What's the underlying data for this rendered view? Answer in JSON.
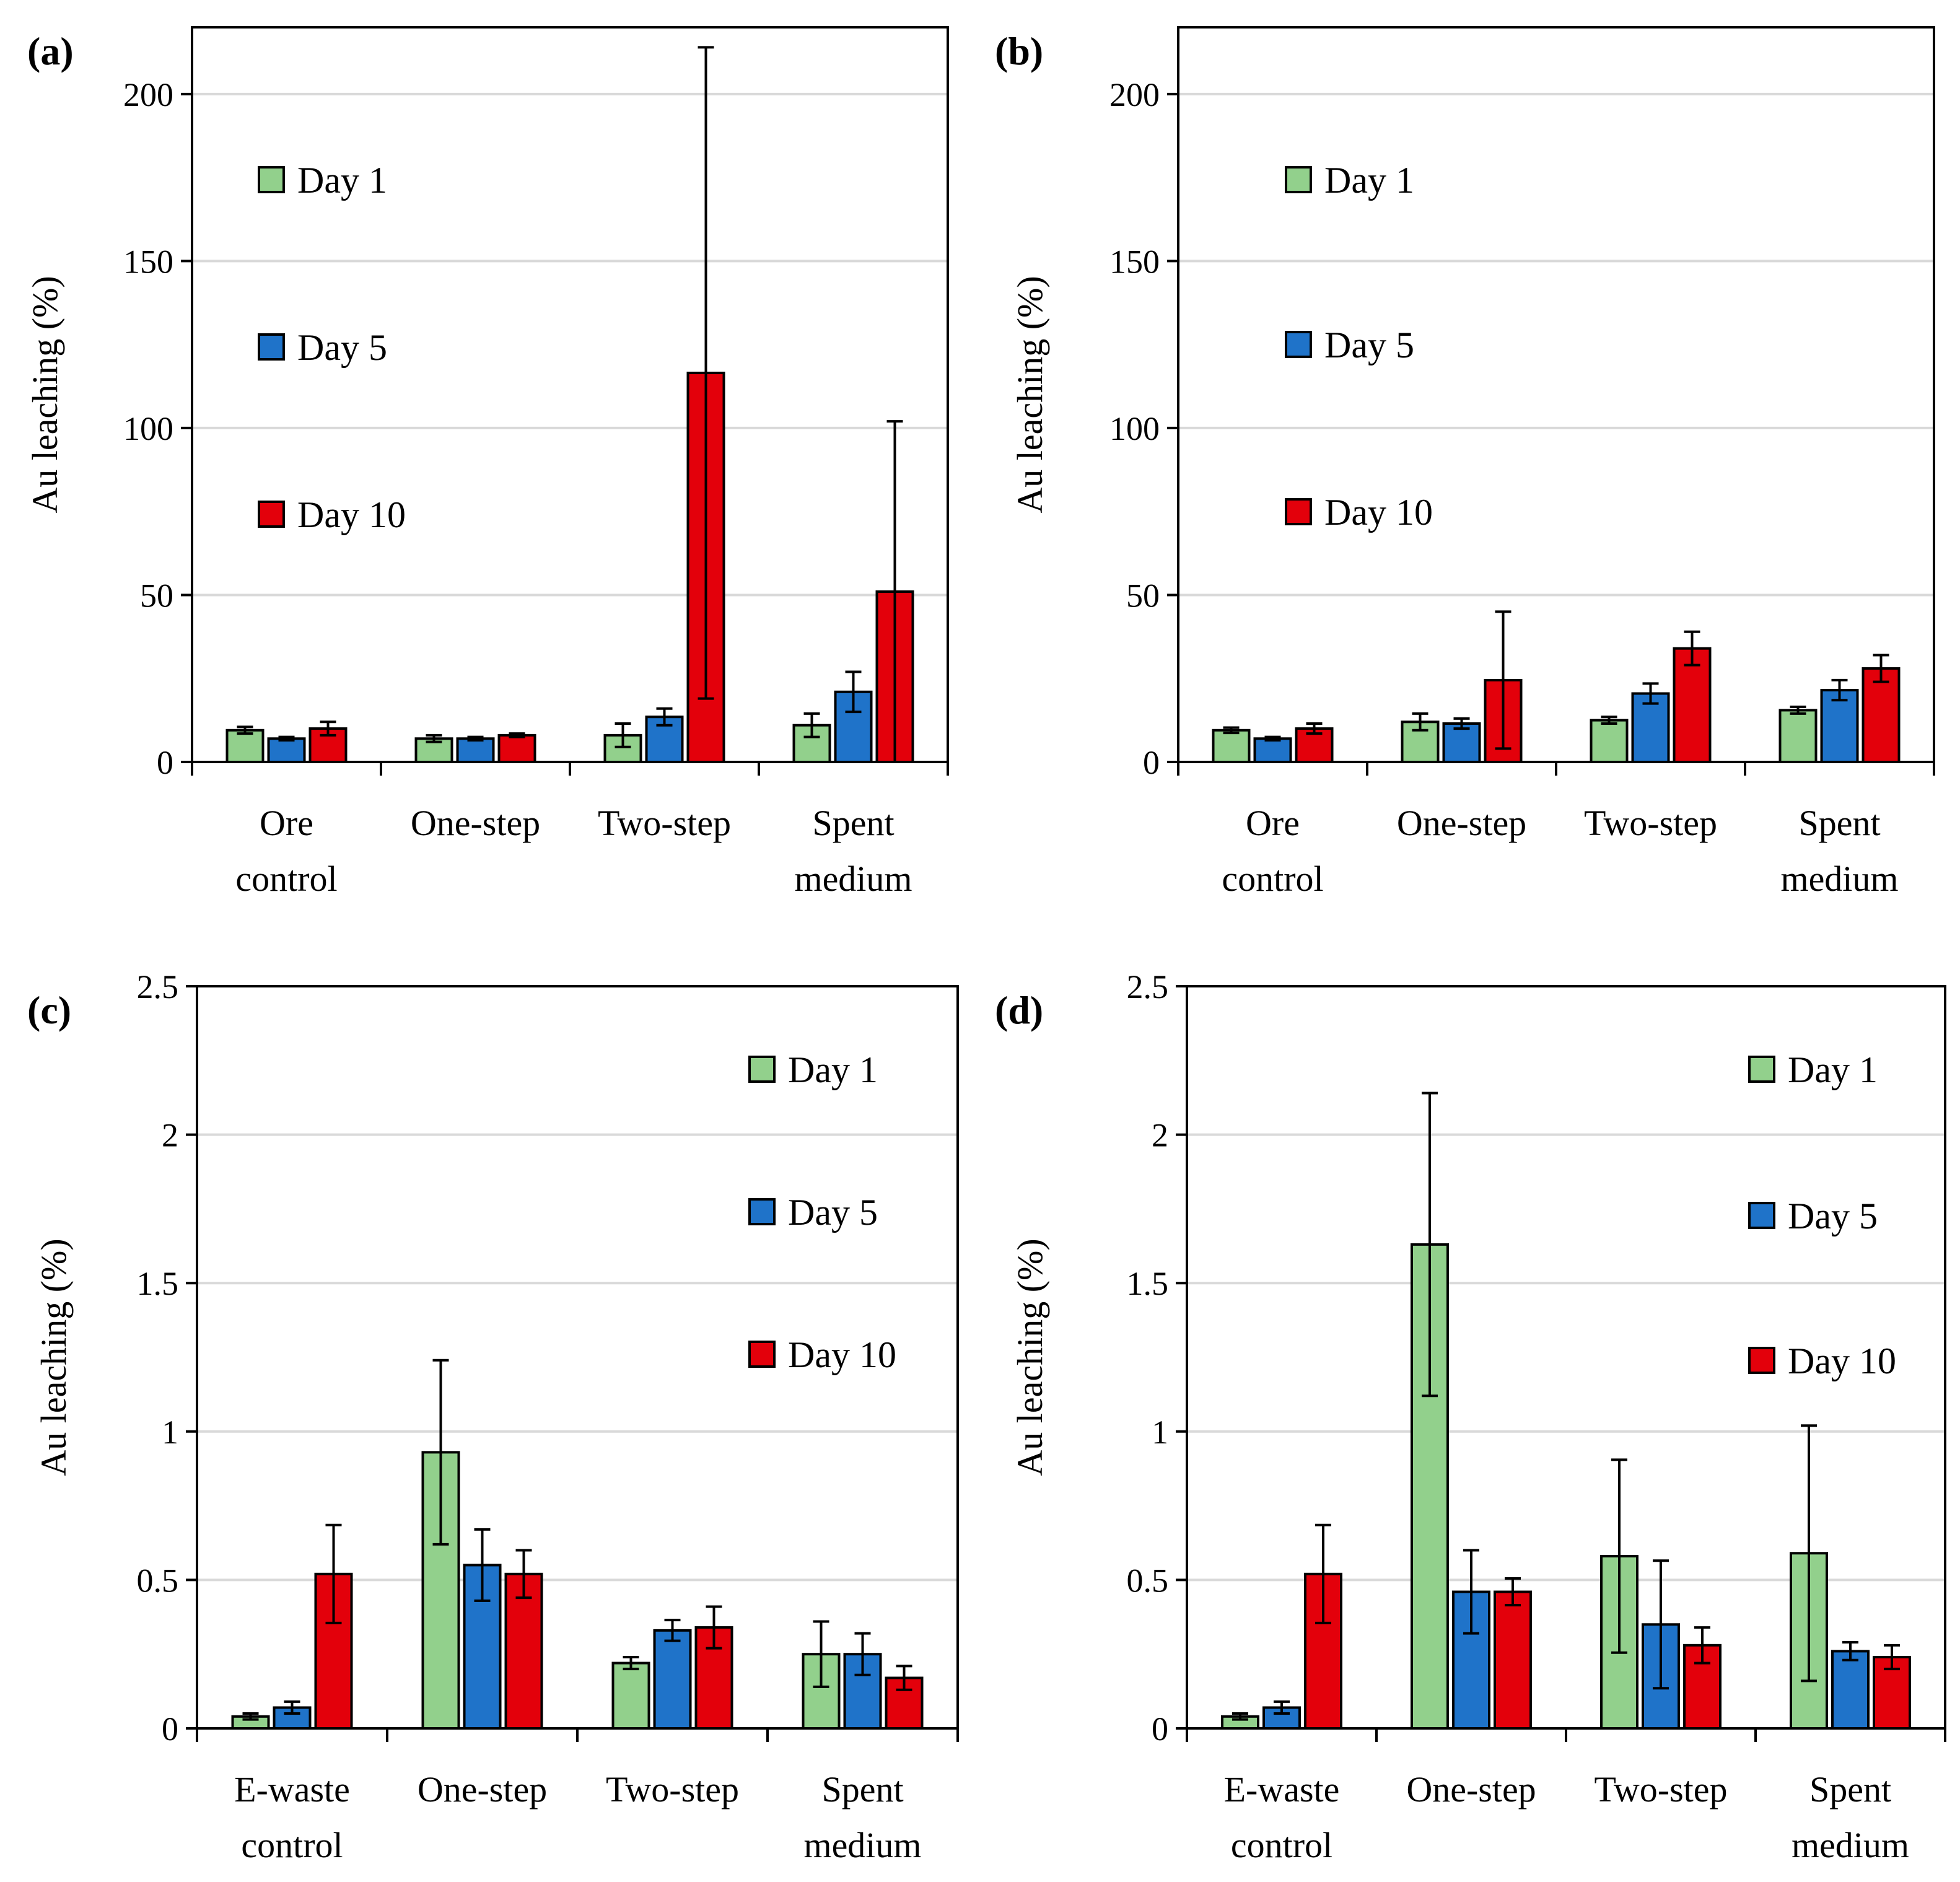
{
  "colors": {
    "day1": "#92d08c",
    "day5": "#1f73c9",
    "day10": "#e3000b",
    "gridline": "#d9d9d9",
    "axis": "#000000"
  },
  "chart_data": [
    {
      "type": "bar",
      "panel_label": "(a)",
      "ylabel": "Au leaching (%)",
      "ylim": [
        0,
        220
      ],
      "yticks": [
        0,
        50,
        100,
        150,
        200
      ],
      "ytick_labels": [
        "0",
        "50",
        "100",
        "150",
        "200"
      ],
      "grid": true,
      "legend_position": "upper-left",
      "categories": [
        [
          "Ore",
          "control"
        ],
        [
          "One-step"
        ],
        [
          "Two-step"
        ],
        [
          "Spent",
          "medium"
        ]
      ],
      "series": [
        {
          "name": "Day 1",
          "values": [
            9.5,
            7,
            8,
            11
          ],
          "errors": [
            1,
            1,
            3.5,
            3.5
          ]
        },
        {
          "name": "Day 5",
          "values": [
            7,
            7,
            13.5,
            21
          ],
          "errors": [
            0.5,
            0.5,
            2.5,
            6
          ]
        },
        {
          "name": "Day 10",
          "values": [
            10,
            8,
            116.5,
            51
          ],
          "errors": [
            2,
            0.5,
            97.5,
            51
          ]
        }
      ]
    },
    {
      "type": "bar",
      "panel_label": "(b)",
      "ylabel": "Au leaching (%)",
      "ylim": [
        0,
        220
      ],
      "yticks": [
        0,
        50,
        100,
        150,
        200
      ],
      "ytick_labels": [
        "0",
        "50",
        "100",
        "150",
        "200"
      ],
      "grid": true,
      "legend_position": "upper-left",
      "categories": [
        [
          "Ore",
          "control"
        ],
        [
          "One-step"
        ],
        [
          "Two-step"
        ],
        [
          "Spent",
          "medium"
        ]
      ],
      "series": [
        {
          "name": "Day 1",
          "values": [
            9.5,
            12,
            12.5,
            15.5
          ],
          "errors": [
            0.8,
            2.5,
            1,
            1
          ]
        },
        {
          "name": "Day 5",
          "values": [
            7,
            11.5,
            20.5,
            21.5
          ],
          "errors": [
            0.5,
            1.5,
            3,
            3
          ]
        },
        {
          "name": "Day 10",
          "values": [
            10,
            24.5,
            34,
            28
          ],
          "errors": [
            1.5,
            20.5,
            5,
            4
          ]
        }
      ]
    },
    {
      "type": "bar",
      "panel_label": "(c)",
      "ylabel": "Au leaching (%)",
      "ylim": [
        0,
        2.5
      ],
      "yticks": [
        0,
        0.5,
        1,
        1.5,
        2,
        2.5
      ],
      "ytick_labels": [
        "0",
        "0.5",
        "1",
        "1.5",
        "2",
        "2.5"
      ],
      "grid": true,
      "legend_position": "upper-right",
      "categories": [
        [
          "E-waste",
          "control"
        ],
        [
          "One-step"
        ],
        [
          "Two-step"
        ],
        [
          "Spent",
          "medium"
        ]
      ],
      "series": [
        {
          "name": "Day 1",
          "values": [
            0.04,
            0.93,
            0.22,
            0.25
          ],
          "errors": [
            0.01,
            0.31,
            0.02,
            0.11
          ]
        },
        {
          "name": "Day 5",
          "values": [
            0.07,
            0.55,
            0.33,
            0.25
          ],
          "errors": [
            0.02,
            0.12,
            0.035,
            0.07
          ]
        },
        {
          "name": "Day 10",
          "values": [
            0.52,
            0.52,
            0.34,
            0.17
          ],
          "errors": [
            0.165,
            0.08,
            0.07,
            0.04
          ]
        }
      ]
    },
    {
      "type": "bar",
      "panel_label": "(d)",
      "ylabel": "Au leaching (%)",
      "ylim": [
        0,
        2.5
      ],
      "yticks": [
        0,
        0.5,
        1,
        1.5,
        2,
        2.5
      ],
      "ytick_labels": [
        "0",
        "0.5",
        "1",
        "1.5",
        "2",
        "2.5"
      ],
      "grid": true,
      "legend_position": "upper-right",
      "categories": [
        [
          "E-waste",
          "control"
        ],
        [
          "One-step"
        ],
        [
          "Two-step"
        ],
        [
          "Spent",
          "medium"
        ]
      ],
      "series": [
        {
          "name": "Day 1",
          "values": [
            0.04,
            1.63,
            0.58,
            0.59
          ],
          "errors": [
            0.01,
            0.51,
            0.325,
            0.43
          ]
        },
        {
          "name": "Day 5",
          "values": [
            0.07,
            0.46,
            0.35,
            0.26
          ],
          "errors": [
            0.02,
            0.14,
            0.215,
            0.03
          ]
        },
        {
          "name": "Day 10",
          "values": [
            0.52,
            0.46,
            0.28,
            0.24
          ],
          "errors": [
            0.165,
            0.045,
            0.06,
            0.04
          ]
        }
      ]
    }
  ]
}
